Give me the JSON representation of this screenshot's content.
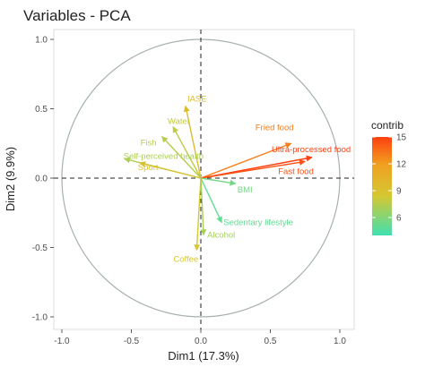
{
  "chart_data": {
    "type": "scatter",
    "title": "Variables - PCA",
    "xlabel": "Dim1 (17.3%)",
    "ylabel": "Dim2 (9.9%)",
    "xlim": [
      -1.0,
      1.0
    ],
    "ylim": [
      -1.0,
      1.0
    ],
    "x_ticks": [
      "-1.0",
      "-0.5",
      "0.0",
      "0.5",
      "1.0"
    ],
    "y_ticks": [
      "-1.0",
      "-0.5",
      "0.0",
      "0.5",
      "1.0"
    ],
    "grid": false,
    "unit_circle": true,
    "reference_lines": "dashed at x=0 and y=0",
    "legend": {
      "title": "contrib",
      "placement": "right",
      "ticks": [
        6,
        9,
        12,
        15
      ],
      "range": [
        4,
        15
      ],
      "colors": [
        "#40e0b0",
        "#d4c832",
        "#f0a020",
        "#ff4010"
      ]
    },
    "variables": [
      {
        "label": "IASE",
        "x": -0.11,
        "y": 0.52,
        "contrib": 9.5
      },
      {
        "label": "Water",
        "x": -0.2,
        "y": 0.37,
        "contrib": 7.8
      },
      {
        "label": "Fish",
        "x": -0.28,
        "y": 0.3,
        "contrib": 7.5
      },
      {
        "label": "Self-perceived health",
        "x": -0.55,
        "y": 0.14,
        "contrib": 7.2
      },
      {
        "label": "Sport",
        "x": -0.44,
        "y": 0.11,
        "contrib": 9.0
      },
      {
        "label": "Fried food",
        "x": 0.65,
        "y": 0.25,
        "contrib": 13.0
      },
      {
        "label": "Ultra-processed food",
        "x": 0.8,
        "y": 0.15,
        "contrib": 15.0
      },
      {
        "label": "Fast food",
        "x": 0.75,
        "y": 0.12,
        "contrib": 14.5
      },
      {
        "label": "BMI",
        "x": 0.25,
        "y": -0.04,
        "contrib": 5.5
      },
      {
        "label": "Sedentary lifestyle",
        "x": 0.15,
        "y": -0.32,
        "contrib": 5.0
      },
      {
        "label": "Alcohol",
        "x": 0.02,
        "y": -0.41,
        "contrib": 7.0
      },
      {
        "label": "Coffee",
        "x": -0.03,
        "y": -0.52,
        "contrib": 8.5
      }
    ]
  }
}
